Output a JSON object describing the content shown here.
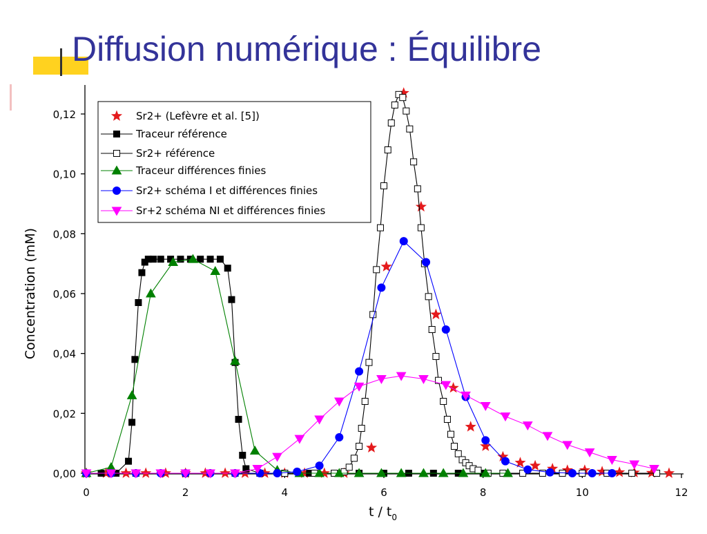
{
  "chart_data": {
    "type": "scatter",
    "title": "Diffusion numérique : Équilibre",
    "xlabel": "t / t",
    "xlabel_sub": "0",
    "ylabel": "Concentration (mM)",
    "xlim": [
      0,
      12
    ],
    "ylim": [
      0,
      0.129
    ],
    "xticks": [
      0,
      2,
      4,
      6,
      8,
      10,
      12
    ],
    "yticks": [
      {
        "value": 0,
        "label": "0,00"
      },
      {
        "value": 0.02,
        "label": "0,02"
      },
      {
        "value": 0.04,
        "label": "0,04"
      },
      {
        "value": 0.06,
        "label": "0,06"
      },
      {
        "value": 0.08,
        "label": "0,08"
      },
      {
        "value": 0.1,
        "label": "0,10"
      },
      {
        "value": 0.12,
        "label": "0,12"
      }
    ],
    "legend": "upper-left",
    "series": [
      {
        "name": "Sr2+ (Lefèvre et al. [5])",
        "color": "#e41a1c",
        "marker": "star",
        "filled": true,
        "line": false,
        "x": [
          0,
          0.4,
          0.8,
          1.2,
          1.6,
          2,
          2.4,
          2.8,
          3.2,
          3.6,
          4,
          4.4,
          4.8,
          5.2,
          5.75,
          6.05,
          6.4,
          6.75,
          7.05,
          7.4,
          7.75,
          8.05,
          8.4,
          8.75,
          9.05,
          9.4,
          9.7,
          10.05,
          10.4,
          10.75,
          11.05,
          11.4,
          11.75
        ],
        "values": [
          0,
          0,
          0,
          0,
          0,
          0,
          0,
          0,
          0,
          0,
          0,
          0,
          0,
          0,
          0.0085,
          0.069,
          0.127,
          0.089,
          0.053,
          0.0285,
          0.0155,
          0.009,
          0.0055,
          0.0035,
          0.0025,
          0.0015,
          0.001,
          0.001,
          0.0005,
          0.0003,
          0.0002,
          0.0001,
          0
        ]
      },
      {
        "name": "Traceur référence",
        "color": "#000000",
        "marker": "square",
        "filled": true,
        "line": true,
        "x": [
          0,
          0.3,
          0.6,
          0.85,
          0.92,
          0.98,
          1.05,
          1.12,
          1.18,
          1.25,
          1.35,
          1.5,
          1.7,
          1.9,
          2.1,
          2.3,
          2.5,
          2.7,
          2.85,
          2.93,
          3.0,
          3.07,
          3.15,
          3.22,
          3.5,
          4,
          4.5,
          5,
          5.5,
          6,
          6.5,
          7,
          7.5,
          8
        ],
        "values": [
          0,
          0,
          0,
          0.004,
          0.017,
          0.038,
          0.057,
          0.067,
          0.0705,
          0.0715,
          0.0715,
          0.0715,
          0.0715,
          0.0715,
          0.0715,
          0.0715,
          0.0715,
          0.0715,
          0.0685,
          0.058,
          0.037,
          0.018,
          0.006,
          0.0015,
          0,
          0,
          0,
          0,
          0,
          0,
          0,
          0,
          0,
          0
        ]
      },
      {
        "name": "Sr2+ référence",
        "color": "#000000",
        "marker": "square",
        "filled": false,
        "line": true,
        "x": [
          0,
          1,
          2,
          3,
          4,
          4.6,
          5.0,
          5.2,
          5.3,
          5.4,
          5.5,
          5.55,
          5.62,
          5.7,
          5.78,
          5.85,
          5.93,
          6.0,
          6.08,
          6.15,
          6.22,
          6.3,
          6.38,
          6.45,
          6.52,
          6.6,
          6.68,
          6.75,
          6.82,
          6.9,
          6.97,
          7.05,
          7.1,
          7.2,
          7.28,
          7.35,
          7.42,
          7.5,
          7.58,
          7.65,
          7.72,
          7.8,
          7.9,
          8.1,
          8.4,
          8.8,
          9.2,
          9.6,
          10,
          10.5,
          11,
          11.5
        ],
        "values": [
          0,
          0,
          0,
          0,
          0,
          0,
          0,
          0.0005,
          0.002,
          0.005,
          0.009,
          0.015,
          0.024,
          0.037,
          0.053,
          0.068,
          0.082,
          0.096,
          0.108,
          0.117,
          0.123,
          0.1265,
          0.1255,
          0.121,
          0.115,
          0.104,
          0.095,
          0.082,
          0.07,
          0.059,
          0.048,
          0.039,
          0.031,
          0.024,
          0.018,
          0.013,
          0.009,
          0.0065,
          0.0045,
          0.0035,
          0.0025,
          0.0015,
          0.001,
          0,
          0,
          0,
          0,
          0,
          0,
          0,
          0,
          0
        ]
      },
      {
        "name": "Traceur différences finies",
        "color": "#008000",
        "marker": "triangle-up",
        "filled": true,
        "line": true,
        "x": [
          0,
          0.5,
          0.92,
          1.3,
          1.75,
          2.15,
          2.6,
          3.0,
          3.4,
          3.85,
          4.3,
          4.7,
          5.1,
          5.5,
          5.95,
          6.35,
          6.8,
          7.2,
          7.6,
          8.05,
          8.5
        ],
        "values": [
          0,
          0.002,
          0.026,
          0.06,
          0.0705,
          0.0715,
          0.0675,
          0.0375,
          0.0075,
          0.001,
          0,
          0,
          0,
          0,
          0,
          0,
          0,
          0,
          0,
          0,
          0
        ]
      },
      {
        "name": "Sr2+ schéma I et différences finies",
        "color": "#0000ff",
        "marker": "circle",
        "filled": true,
        "line": true,
        "x": [
          0,
          0.5,
          1,
          1.5,
          2,
          2.5,
          3,
          3.5,
          3.85,
          4.25,
          4.7,
          5.1,
          5.5,
          5.95,
          6.4,
          6.85,
          7.25,
          7.65,
          8.05,
          8.45,
          8.9,
          9.35,
          9.8,
          10.2,
          10.6
        ],
        "values": [
          0,
          0,
          0,
          0,
          0,
          0,
          0,
          0,
          0,
          0.0005,
          0.0025,
          0.012,
          0.034,
          0.062,
          0.0775,
          0.0705,
          0.048,
          0.0255,
          0.011,
          0.004,
          0.0012,
          0.0003,
          0,
          0,
          0
        ]
      },
      {
        "name": "Sr+2 schéma NI et différences finies",
        "color": "#ff00ff",
        "marker": "triangle-down",
        "filled": true,
        "line": true,
        "x": [
          0,
          0.5,
          1,
          1.5,
          2,
          2.5,
          3,
          3.45,
          3.85,
          4.3,
          4.7,
          5.1,
          5.5,
          5.95,
          6.35,
          6.8,
          7.25,
          7.65,
          8.05,
          8.45,
          8.9,
          9.3,
          9.7,
          10.15,
          10.6,
          11.05,
          11.45
        ],
        "values": [
          0,
          0,
          0,
          0,
          0,
          0,
          0,
          0.0015,
          0.0055,
          0.0115,
          0.018,
          0.024,
          0.029,
          0.0315,
          0.0325,
          0.0315,
          0.0295,
          0.026,
          0.0225,
          0.019,
          0.016,
          0.0125,
          0.0095,
          0.007,
          0.0045,
          0.003,
          0.0015
        ]
      }
    ]
  }
}
